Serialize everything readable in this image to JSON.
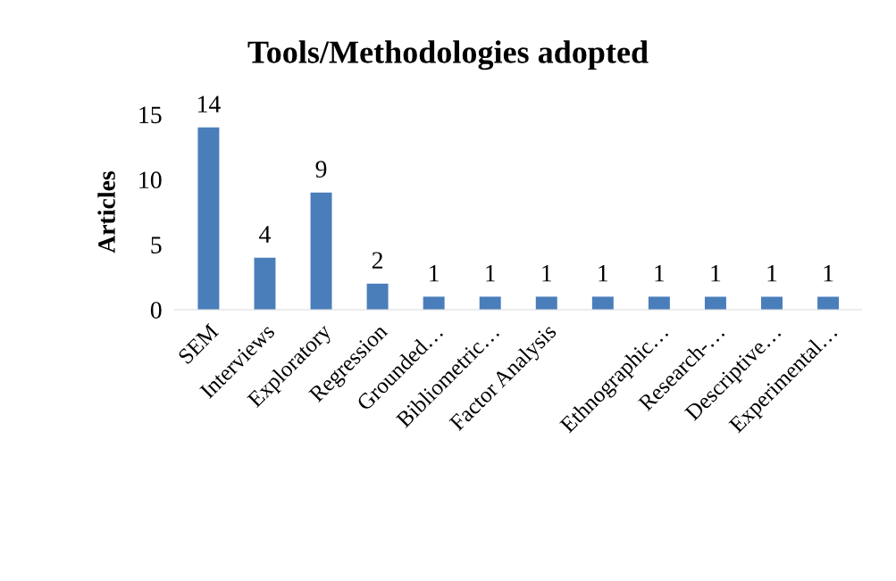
{
  "chart_data": {
    "type": "bar",
    "title": "Tools/Methodologies adopted",
    "ylabel": "Articles",
    "categories": [
      "SEM",
      "Interviews",
      "Exploratory",
      "Regression",
      "Grounded…",
      "Bibliometric…",
      "Factor Analysis",
      null,
      "Ethnographic…",
      "Research-…",
      "Descriptive…",
      "Experimental…"
    ],
    "values": [
      14,
      4,
      9,
      2,
      1,
      1,
      1,
      1,
      1,
      1,
      1,
      1
    ],
    "color": "#4a7ebb",
    "ylim": [
      0,
      15
    ],
    "yticks": [
      0,
      5,
      10,
      15
    ],
    "data_labels": true,
    "grid": false
  }
}
